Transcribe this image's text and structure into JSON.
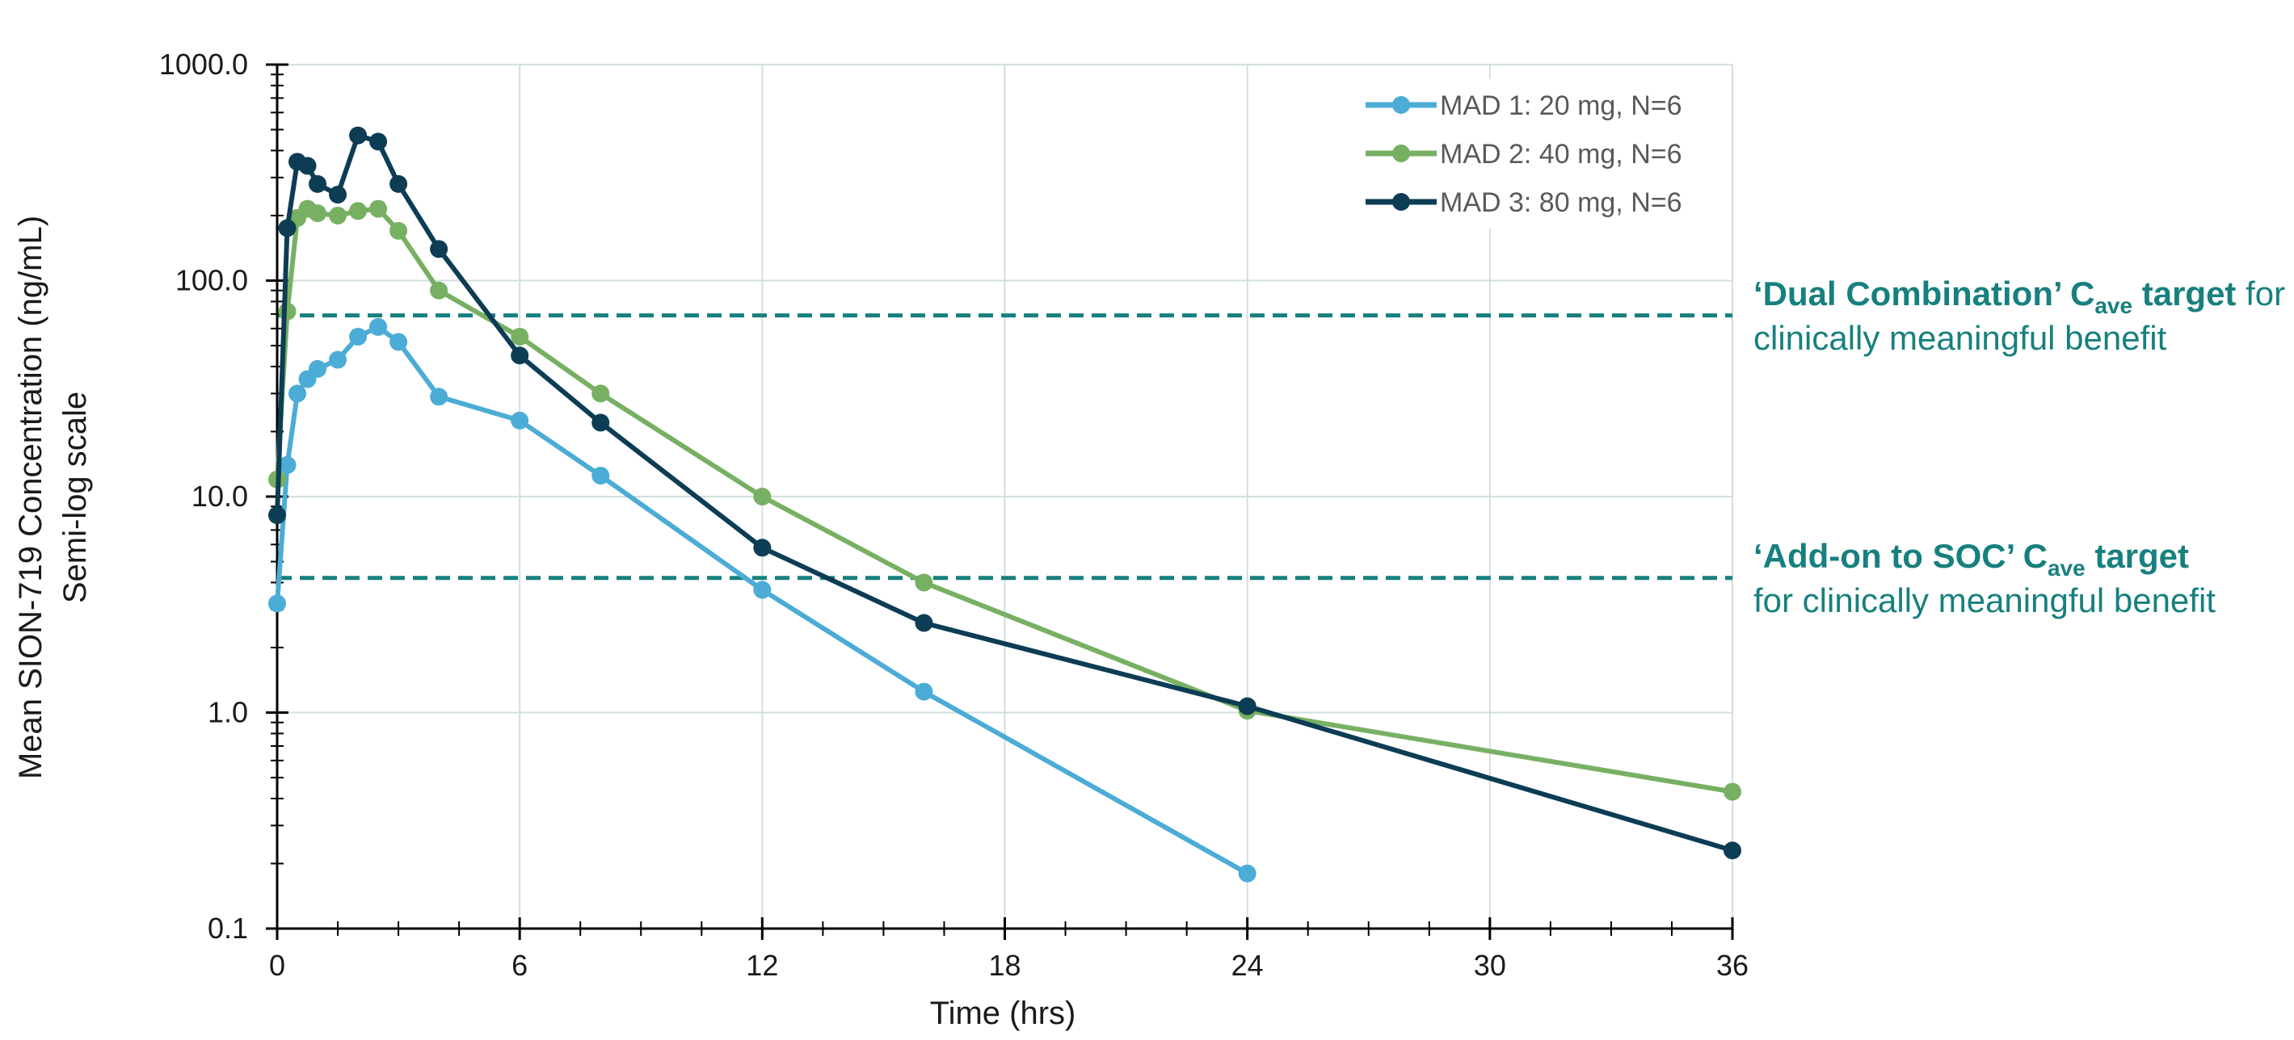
{
  "chart_data": {
    "type": "line",
    "title": "",
    "xlabel": "Time (hrs)",
    "ylabel": "Mean SION-719 Concentration (ng/mL)",
    "ylabel_sub": "Semi-log scale",
    "y_scale": "log",
    "xlim": [
      0,
      36
    ],
    "ylim": [
      0.1,
      1000
    ],
    "grid": true,
    "legend_position": "top-right",
    "x_ticks": [
      0,
      6,
      12,
      18,
      24,
      30,
      36
    ],
    "x_tick_labels": [
      "0",
      "6",
      "12",
      "18",
      "24",
      "30",
      "36"
    ],
    "y_ticks": [
      0.1,
      1,
      10,
      100,
      1000
    ],
    "y_tick_labels": [
      "0.1",
      "1.0",
      "10.0",
      "100.0",
      "1000.0"
    ],
    "series": [
      {
        "name": "MAD 1: 20 mg, N=6",
        "color": "#4bacd6",
        "x": [
          0,
          0.25,
          0.5,
          0.75,
          1,
          1.5,
          2,
          2.5,
          3,
          4,
          6,
          8,
          12,
          16,
          24
        ],
        "y": [
          3.2,
          14,
          30,
          35,
          39,
          43,
          55,
          61,
          52,
          29,
          22.5,
          12.5,
          3.7,
          1.25,
          0.18
        ]
      },
      {
        "name": "MAD 2: 40 mg, N=6",
        "color": "#77b062",
        "x": [
          0,
          0.25,
          0.5,
          0.75,
          1,
          1.5,
          2,
          2.5,
          3,
          4,
          6,
          8,
          12,
          16,
          24,
          36
        ],
        "y": [
          12,
          72,
          195,
          215,
          205,
          200,
          210,
          215,
          170,
          90,
          55,
          30,
          10,
          4,
          1.02,
          0.43
        ]
      },
      {
        "name": "MAD 3: 80 mg, N=6",
        "color": "#0d3c55",
        "x": [
          0,
          0.25,
          0.5,
          0.75,
          1,
          1.5,
          2,
          2.5,
          3,
          4,
          6,
          8,
          12,
          16,
          24,
          36
        ],
        "y": [
          8.2,
          175,
          355,
          340,
          280,
          250,
          470,
          440,
          280,
          140,
          45,
          22,
          5.8,
          2.6,
          1.07,
          0.23
        ]
      }
    ],
    "reference_lines": [
      {
        "y": 69,
        "color": "#17807e",
        "label_parts": [
          "‘Dual Combination’ C",
          "ave",
          " target",
          " for"
        ],
        "label_line2": "clinically meaningful benefit"
      },
      {
        "y": 4.2,
        "color": "#17807e",
        "label_parts": [
          "‘Add-on to SOC’ C",
          "ave",
          " target"
        ],
        "label_line2": "for clinically meaningful benefit"
      }
    ]
  }
}
